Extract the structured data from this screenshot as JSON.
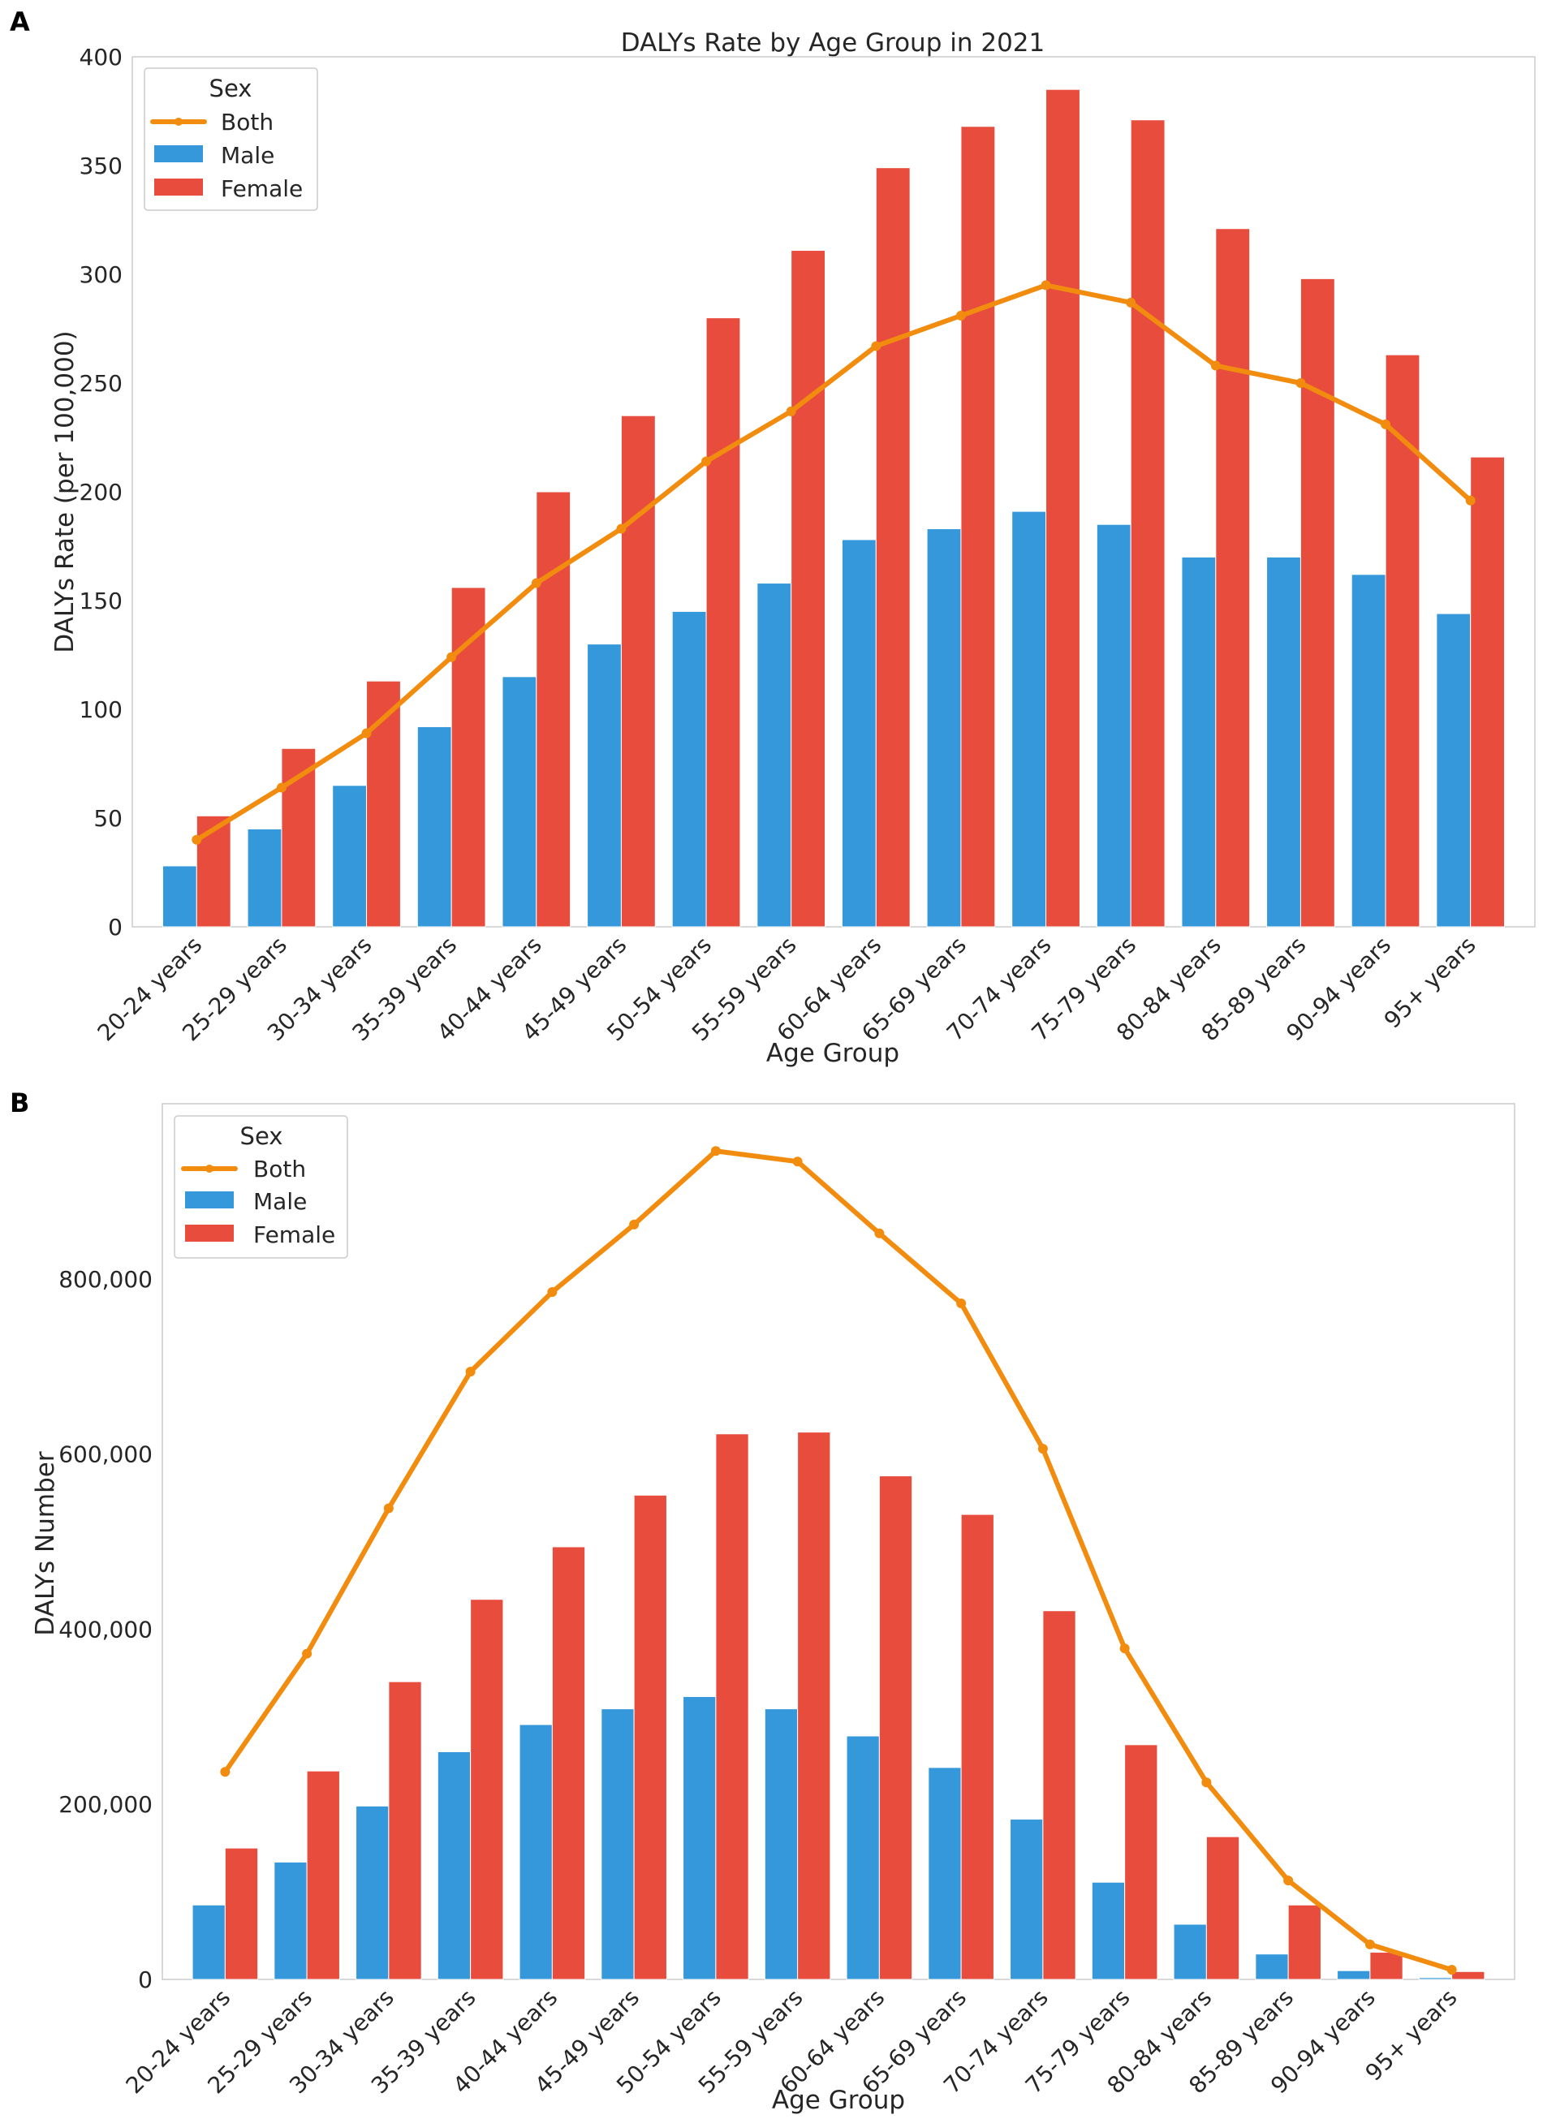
{
  "colors": {
    "both": "#F28C0F",
    "male": "#3498DB",
    "female": "#E74C3C",
    "frame": "#CCCCCC",
    "text": "#262626"
  },
  "chart_data": [
    {
      "panel": "A",
      "type": "bar",
      "title": "DALYs Rate by Age Group in 2021",
      "xlabel": "Age Group",
      "ylabel": "DALYs Rate (per 100,000)",
      "ylim": [
        0,
        400
      ],
      "yticks": [
        0,
        50,
        100,
        150,
        200,
        250,
        300,
        350,
        400
      ],
      "ytick_labels": [
        "0",
        "50",
        "100",
        "150",
        "200",
        "250",
        "300",
        "350",
        "400"
      ],
      "grid": false,
      "legend_title": "Sex",
      "legend_position": "top-left",
      "categories": [
        "20-24 years",
        "25-29 years",
        "30-34 years",
        "35-39 years",
        "40-44 years",
        "45-49 years",
        "50-54 years",
        "55-59 years",
        "60-64 years",
        "65-69 years",
        "70-74 years",
        "75-79 years",
        "80-84 years",
        "85-89 years",
        "90-94 years",
        "95+ years"
      ],
      "series": [
        {
          "name": "Both",
          "kind": "line",
          "color_key": "both",
          "values": [
            40,
            64,
            89,
            124,
            158,
            183,
            214,
            237,
            267,
            281,
            295,
            287,
            258,
            250,
            231,
            196
          ]
        },
        {
          "name": "Male",
          "kind": "bar",
          "color_key": "male",
          "values": [
            28,
            45,
            65,
            92,
            115,
            130,
            145,
            158,
            178,
            183,
            191,
            185,
            170,
            170,
            162,
            144
          ]
        },
        {
          "name": "Female",
          "kind": "bar",
          "color_key": "female",
          "values": [
            51,
            82,
            113,
            156,
            200,
            235,
            280,
            311,
            349,
            368,
            385,
            371,
            321,
            298,
            263,
            216
          ]
        }
      ]
    },
    {
      "panel": "B",
      "type": "bar",
      "title": "",
      "xlabel": "Age Group",
      "ylabel": "DALYs Number",
      "ylim": [
        0,
        1000000
      ],
      "yticks": [
        0,
        200000,
        400000,
        600000,
        800000
      ],
      "ytick_labels": [
        "0",
        "200,000",
        "400,000",
        "600,000",
        "800,000"
      ],
      "grid": false,
      "legend_title": "Sex",
      "legend_position": "top-left",
      "categories": [
        "20-24 years",
        "25-29 years",
        "30-34 years",
        "35-39 years",
        "40-44 years",
        "45-49 years",
        "50-54 years",
        "55-59 years",
        "60-64 years",
        "65-69 years",
        "70-74 years",
        "75-79 years",
        "80-84 years",
        "85-89 years",
        "90-94 years",
        "95+ years"
      ],
      "series": [
        {
          "name": "Both",
          "kind": "line",
          "color_key": "both",
          "values": [
            237000,
            372000,
            538000,
            694000,
            785000,
            862000,
            946000,
            934000,
            852000,
            772000,
            606000,
            378000,
            225000,
            113000,
            40000,
            11000
          ]
        },
        {
          "name": "Male",
          "kind": "bar",
          "color_key": "male",
          "values": [
            85000,
            134000,
            198000,
            260000,
            291000,
            309000,
            323000,
            309000,
            278000,
            242000,
            183000,
            111000,
            63000,
            29000,
            10000,
            2000
          ]
        },
        {
          "name": "Female",
          "kind": "bar",
          "color_key": "female",
          "values": [
            150000,
            238000,
            340000,
            434000,
            494000,
            553000,
            623000,
            625000,
            575000,
            531000,
            421000,
            268000,
            163000,
            85000,
            31000,
            9000
          ]
        }
      ]
    }
  ]
}
